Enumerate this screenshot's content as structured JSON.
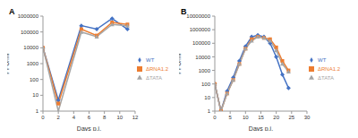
{
  "chart_data": [
    {
      "type": "line",
      "title": "A",
      "x_label": "Days p.i.",
      "y_label": "PFU/ml",
      "log": "y",
      "legend": "right",
      "x": [
        0,
        2,
        5,
        7,
        9,
        11
      ],
      "xlim": [
        0,
        12
      ],
      "xticks": [
        0,
        2,
        4,
        6,
        8,
        10,
        12
      ],
      "ylim": [
        1,
        1000000
      ],
      "yticks": [
        1,
        10,
        100,
        1000,
        10000,
        100000,
        1000000
      ],
      "series": [
        {
          "name": "WT",
          "color": "#4472c4",
          "marker": "diamond",
          "values": [
            10000,
            5,
            250000,
            150000,
            700000,
            150000
          ]
        },
        {
          "name": "ΔRNA1.2",
          "color": "#ed7d31",
          "marker": "square",
          "values": [
            10000,
            3,
            150000,
            60000,
            400000,
            300000
          ]
        },
        {
          "name": "ΔTATA",
          "color": "#a5a5a5",
          "marker": "triangle",
          "values": [
            10000,
            1,
            100000,
            50000,
            300000,
            250000
          ]
        }
      ]
    },
    {
      "type": "line",
      "title": "B",
      "x_label": "Days p.i.",
      "y_label": "PFU/ml",
      "log": "y",
      "legend": "right",
      "x": [
        0,
        2,
        4,
        6,
        8,
        10,
        12,
        14,
        16,
        18,
        20,
        22,
        24
      ],
      "xlim": [
        0,
        30
      ],
      "xticks": [
        0,
        5,
        10,
        15,
        20,
        25,
        30
      ],
      "ylim": [
        1,
        10000000
      ],
      "yticks": [
        1,
        10,
        100,
        1000,
        10000,
        100000,
        1000000,
        10000000
      ],
      "series": [
        {
          "name": "WT",
          "color": "#4472c4",
          "marker": "diamond",
          "values": [
            100,
            1,
            30,
            300,
            5000,
            60000,
            300000,
            400000,
            300000,
            100000,
            10000,
            500,
            50
          ]
        },
        {
          "name": "ΔRNA1.2",
          "color": "#ed7d31",
          "marker": "square",
          "values": [
            100,
            1,
            20,
            200,
            3000,
            40000,
            200000,
            300000,
            250000,
            200000,
            50000,
            5000,
            1000
          ]
        },
        {
          "name": "ΔTATA",
          "color": "#a5a5a5",
          "marker": "triangle",
          "values": [
            100,
            1,
            20,
            200,
            3000,
            40000,
            150000,
            300000,
            250000,
            150000,
            30000,
            3000,
            800
          ]
        }
      ]
    }
  ]
}
